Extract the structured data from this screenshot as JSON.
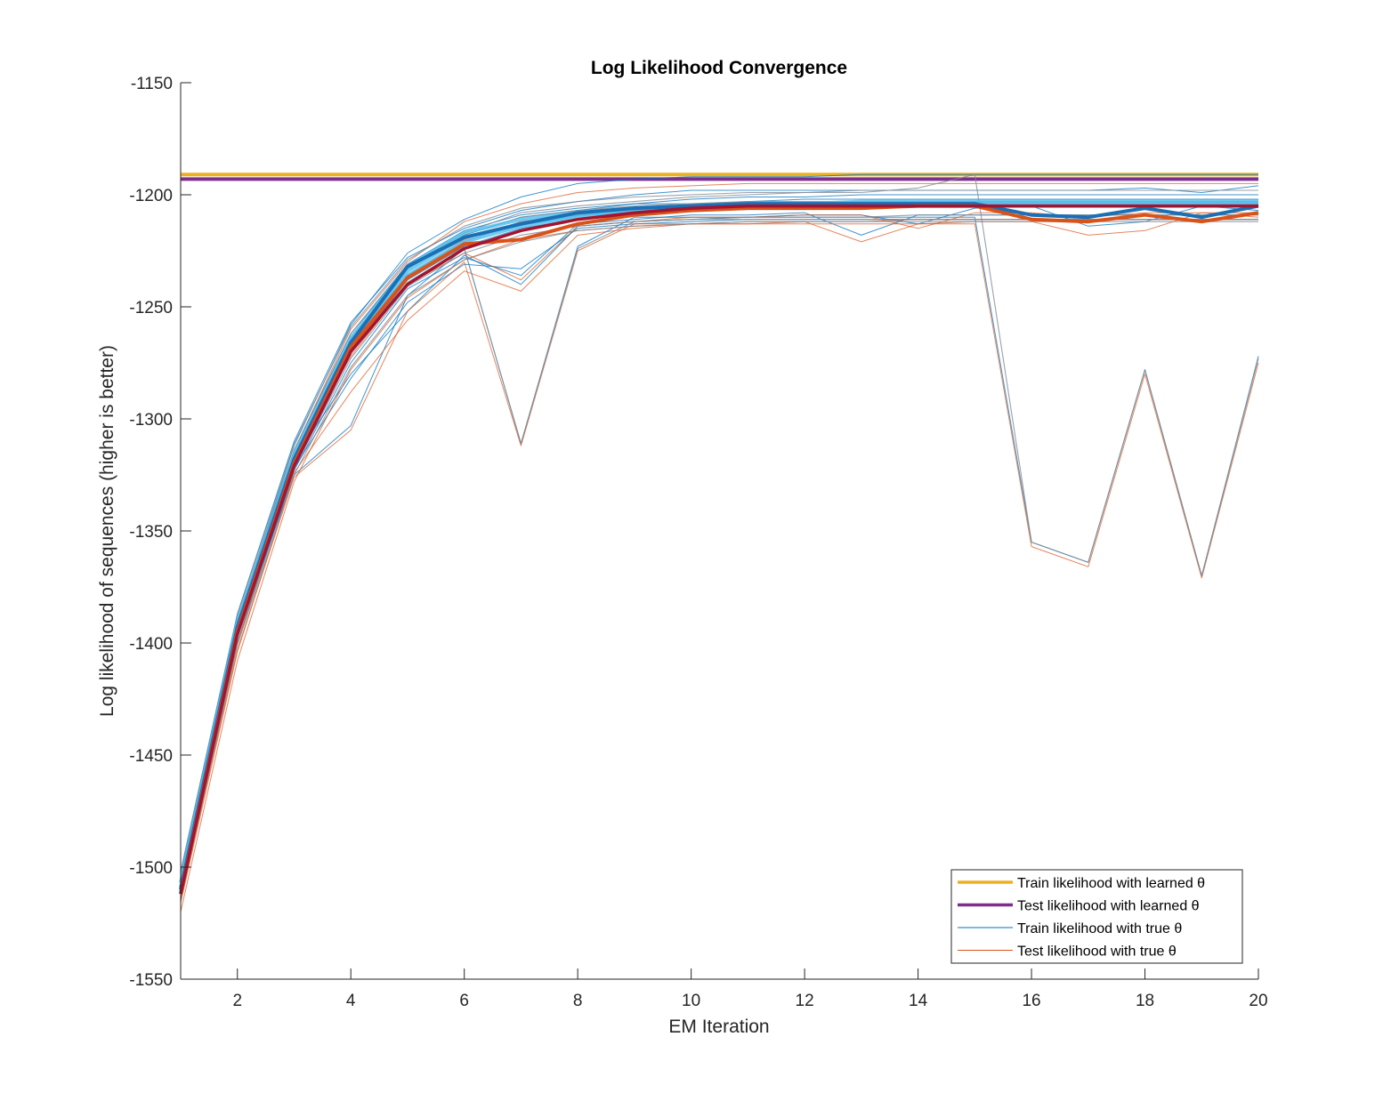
{
  "chart_data": {
    "type": "line",
    "title": "Log Likelihood Convergence",
    "xlabel": "EM Iteration",
    "ylabel": "Log likelihood of sequences (higher is better)",
    "xlim": [
      1,
      20
    ],
    "ylim": [
      -1550,
      -1150
    ],
    "xticks": [
      2,
      4,
      6,
      8,
      10,
      12,
      14,
      16,
      18,
      20
    ],
    "yticks": [
      -1550,
      -1500,
      -1450,
      -1400,
      -1350,
      -1300,
      -1250,
      -1200,
      -1150
    ],
    "grid": false,
    "legend_position": "bottom-right",
    "x": [
      1,
      2,
      3,
      4,
      5,
      6,
      7,
      8,
      9,
      10,
      11,
      12,
      13,
      14,
      15,
      16,
      17,
      18,
      19,
      20
    ],
    "colors": {
      "train_learned": "#EDB120",
      "test_learned": "#7E2F8E",
      "train_true": "#4DBEEE",
      "test_true": "#D95319",
      "train_thin": "#0072BD",
      "test_thin": "#D95319",
      "gray": "#7f8a96",
      "train_mean": "#1a6fb5",
      "test_mean": "#D95319",
      "darkred": "#A2142F"
    },
    "legend": [
      {
        "label": "Train likelihood with learned θ",
        "color": "#EDB120",
        "width": 3.5
      },
      {
        "label": "Test likelihood with learned θ",
        "color": "#7E2F8E",
        "width": 3.5
      },
      {
        "label": "Train likelihood with true θ",
        "color": "#0072BD",
        "width": 1
      },
      {
        "label": "Test likelihood with true θ",
        "color": "#D95319",
        "width": 1
      }
    ],
    "series": [
      {
        "role": "train_learned_level",
        "values": [
          -1191,
          -1191,
          -1191,
          -1191,
          -1191,
          -1191,
          -1191,
          -1191,
          -1191,
          -1191,
          -1191,
          -1191,
          -1191,
          -1191,
          -1191,
          -1191,
          -1191,
          -1191,
          -1191,
          -1191
        ]
      },
      {
        "role": "test_learned_level",
        "values": [
          -1193,
          -1193,
          -1193,
          -1193,
          -1193,
          -1193,
          -1193,
          -1193,
          -1193,
          -1193,
          -1193,
          -1193,
          -1193,
          -1193,
          -1193,
          -1193,
          -1193,
          -1193,
          -1193,
          -1193
        ]
      },
      {
        "role": "train_thin",
        "values": [
          -1505,
          -1390,
          -1312,
          -1258,
          -1226,
          -1211,
          -1201,
          -1195,
          -1193,
          -1192,
          -1192,
          -1192,
          -1191,
          -1191,
          -1191,
          -1191,
          -1191,
          -1191,
          -1191,
          -1191
        ]
      },
      {
        "role": "train_thin",
        "values": [
          -1502,
          -1387,
          -1310,
          -1257,
          -1228,
          -1215,
          -1207,
          -1203,
          -1200,
          -1198,
          -1198,
          -1198,
          -1198,
          -1198,
          -1198,
          -1198,
          -1198,
          -1197,
          -1199,
          -1196
        ]
      },
      {
        "role": "train_thin",
        "values": [
          -1508,
          -1393,
          -1316,
          -1265,
          -1233,
          -1218,
          -1210,
          -1207,
          -1204,
          -1204,
          -1203,
          -1202,
          -1202,
          -1202,
          -1202,
          -1202,
          -1202,
          -1202,
          -1202,
          -1202
        ]
      },
      {
        "role": "train_thin",
        "values": [
          -1512,
          -1397,
          -1320,
          -1270,
          -1238,
          -1223,
          -1215,
          -1211,
          -1209,
          -1207,
          -1206,
          -1206,
          -1205,
          -1205,
          -1205,
          -1205,
          -1205,
          -1205,
          -1205,
          -1205
        ]
      },
      {
        "role": "train_thin",
        "values": [
          -1515,
          -1400,
          -1323,
          -1275,
          -1242,
          -1228,
          -1236,
          -1213,
          -1211,
          -1209,
          -1209,
          -1208,
          -1218,
          -1209,
          -1209,
          -1209,
          -1209,
          -1209,
          -1209,
          -1209
        ]
      },
      {
        "role": "train_thin",
        "values": [
          -1510,
          -1398,
          -1322,
          -1282,
          -1248,
          -1231,
          -1233,
          -1215,
          -1213,
          -1212,
          -1211,
          -1211,
          -1211,
          -1211,
          -1211,
          -1211,
          -1211,
          -1211,
          -1211,
          -1211
        ]
      },
      {
        "role": "train_thin",
        "values": [
          -1509,
          -1395,
          -1318,
          -1280,
          -1252,
          -1227,
          -1240,
          -1214,
          -1212,
          -1211,
          -1210,
          -1209,
          -1209,
          -1213,
          -1206,
          -1205,
          -1214,
          -1212,
          -1205,
          -1207
        ]
      },
      {
        "role": "train_thin",
        "values": [
          -1506,
          -1391,
          -1314,
          -1262,
          -1231,
          -1216,
          -1209,
          -1206,
          -1204,
          -1202,
          -1201,
          -1201,
          -1200,
          -1200,
          -1200,
          -1200,
          -1200,
          -1200,
          -1200,
          -1200
        ]
      },
      {
        "role": "train_thin",
        "values": [
          -1511,
          -1396,
          -1325,
          -1303,
          -1245,
          -1224,
          -1311,
          -1223,
          -1210,
          -1210,
          -1210,
          -1210,
          -1210,
          -1210,
          -1210,
          -1355,
          -1364,
          -1278,
          -1370,
          -1272
        ]
      },
      {
        "role": "test_thin",
        "values": [
          -1508,
          -1393,
          -1314,
          -1260,
          -1230,
          -1212,
          -1204,
          -1199,
          -1197,
          -1196,
          -1195,
          -1195,
          -1195,
          -1195,
          -1195,
          -1195,
          -1195,
          -1195,
          -1195,
          -1195
        ]
      },
      {
        "role": "test_thin",
        "values": [
          -1513,
          -1400,
          -1320,
          -1268,
          -1236,
          -1220,
          -1212,
          -1209,
          -1206,
          -1205,
          -1204,
          -1204,
          -1204,
          -1204,
          -1204,
          -1204,
          -1204,
          -1204,
          -1204,
          -1204
        ]
      },
      {
        "role": "test_thin",
        "values": [
          -1520,
          -1408,
          -1328,
          -1278,
          -1246,
          -1229,
          -1220,
          -1216,
          -1214,
          -1213,
          -1212,
          -1212,
          -1212,
          -1211,
          -1211,
          -1211,
          -1211,
          -1211,
          -1211,
          -1211
        ]
      },
      {
        "role": "test_thin",
        "values": [
          -1516,
          -1404,
          -1324,
          -1288,
          -1256,
          -1234,
          -1243,
          -1218,
          -1215,
          -1213,
          -1213,
          -1212,
          -1221,
          -1213,
          -1212,
          -1212,
          -1218,
          -1216,
          -1208,
          -1210
        ]
      },
      {
        "role": "test_thin",
        "values": [
          -1511,
          -1398,
          -1318,
          -1272,
          -1240,
          -1226,
          -1238,
          -1214,
          -1212,
          -1210,
          -1210,
          -1209,
          -1209,
          -1215,
          -1208,
          -1208,
          -1210,
          -1208,
          -1208,
          -1208
        ]
      },
      {
        "role": "test_thin",
        "values": [
          -1514,
          -1403,
          -1326,
          -1305,
          -1252,
          -1230,
          -1312,
          -1225,
          -1213,
          -1213,
          -1213,
          -1213,
          -1213,
          -1213,
          -1213,
          -1357,
          -1366,
          -1280,
          -1371,
          -1275
        ]
      },
      {
        "role": "gray",
        "values": [
          -1503,
          -1388,
          -1311,
          -1259,
          -1229,
          -1214,
          -1206,
          -1203,
          -1201,
          -1200,
          -1199,
          -1199,
          -1198,
          -1198,
          -1198,
          -1198,
          -1198,
          -1198,
          -1198,
          -1198
        ]
      },
      {
        "role": "gray",
        "values": [
          -1507,
          -1392,
          -1316,
          -1264,
          -1233,
          -1218,
          -1210,
          -1207,
          -1205,
          -1204,
          -1203,
          -1203,
          -1203,
          -1203,
          -1203,
          -1203,
          -1203,
          -1203,
          -1203,
          -1203
        ]
      },
      {
        "role": "gray",
        "values": [
          -1510,
          -1395,
          -1319,
          -1268,
          -1236,
          -1221,
          -1212,
          -1209,
          -1207,
          -1206,
          -1206,
          -1205,
          -1205,
          -1205,
          -1205,
          -1205,
          -1205,
          -1205,
          -1205,
          -1205
        ]
      },
      {
        "role": "gray",
        "values": [
          -1512,
          -1398,
          -1322,
          -1273,
          -1241,
          -1226,
          -1218,
          -1214,
          -1212,
          -1211,
          -1210,
          -1210,
          -1210,
          -1209,
          -1209,
          -1209,
          -1209,
          -1209,
          -1209,
          -1209
        ]
      },
      {
        "role": "gray",
        "values": [
          -1514,
          -1401,
          -1325,
          -1277,
          -1245,
          -1229,
          -1221,
          -1216,
          -1214,
          -1213,
          -1212,
          -1212,
          -1212,
          -1212,
          -1212,
          -1212,
          -1212,
          -1212,
          -1212,
          -1212
        ]
      },
      {
        "role": "gray",
        "values": [
          -1505,
          -1390,
          -1314,
          -1262,
          -1232,
          -1217,
          -1208,
          -1205,
          -1203,
          -1201,
          -1200,
          -1199,
          -1199,
          -1197,
          -1191,
          -1355,
          -1364,
          -1278,
          -1370,
          -1273
        ]
      },
      {
        "role": "gray",
        "values": [
          -1512,
          -1397,
          -1321,
          -1270,
          -1239,
          -1224,
          -1311,
          -1224,
          -1212,
          -1211,
          -1211,
          -1211,
          -1211,
          -1211,
          -1211,
          -1211,
          -1211,
          -1211,
          -1211,
          -1211
        ]
      },
      {
        "role": "train_true_band",
        "values": [
          -1507,
          -1391,
          -1316,
          -1264,
          -1232,
          -1217,
          -1211,
          -1208,
          -1206,
          -1205,
          -1204,
          -1204,
          -1203,
          -1203,
          -1203,
          -1203,
          -1203,
          -1203,
          -1203,
          -1203
        ]
      },
      {
        "role": "train_true_band",
        "values": [
          -1509,
          -1393,
          -1318,
          -1266,
          -1234,
          -1219,
          -1213,
          -1209,
          -1207,
          -1206,
          -1205,
          -1205,
          -1204,
          -1204,
          -1204,
          -1204,
          -1204,
          -1204,
          -1204,
          -1204
        ]
      },
      {
        "role": "train_true_band",
        "values": [
          -1511,
          -1395,
          -1320,
          -1268,
          -1236,
          -1221,
          -1214,
          -1210,
          -1208,
          -1207,
          -1206,
          -1206,
          -1205,
          -1205,
          -1205,
          -1205,
          -1205,
          -1205,
          -1205,
          -1205
        ]
      },
      {
        "role": "train_mean",
        "values": [
          -1510,
          -1393,
          -1318,
          -1266,
          -1232,
          -1219,
          -1213,
          -1208,
          -1206,
          -1205,
          -1204,
          -1204,
          -1204,
          -1204,
          -1204,
          -1209,
          -1210,
          -1206,
          -1210,
          -1205
        ]
      },
      {
        "role": "test_mean",
        "values": [
          -1512,
          -1395,
          -1320,
          -1268,
          -1237,
          -1222,
          -1220,
          -1213,
          -1209,
          -1207,
          -1206,
          -1206,
          -1206,
          -1205,
          -1205,
          -1211,
          -1212,
          -1209,
          -1212,
          -1208
        ]
      },
      {
        "role": "darkred",
        "values": [
          -1512,
          -1396,
          -1321,
          -1270,
          -1240,
          -1224,
          -1216,
          -1211,
          -1208,
          -1206,
          -1205,
          -1205,
          -1205,
          -1205,
          -1205,
          -1205,
          -1205,
          -1205,
          -1205,
          -1205
        ]
      }
    ]
  }
}
